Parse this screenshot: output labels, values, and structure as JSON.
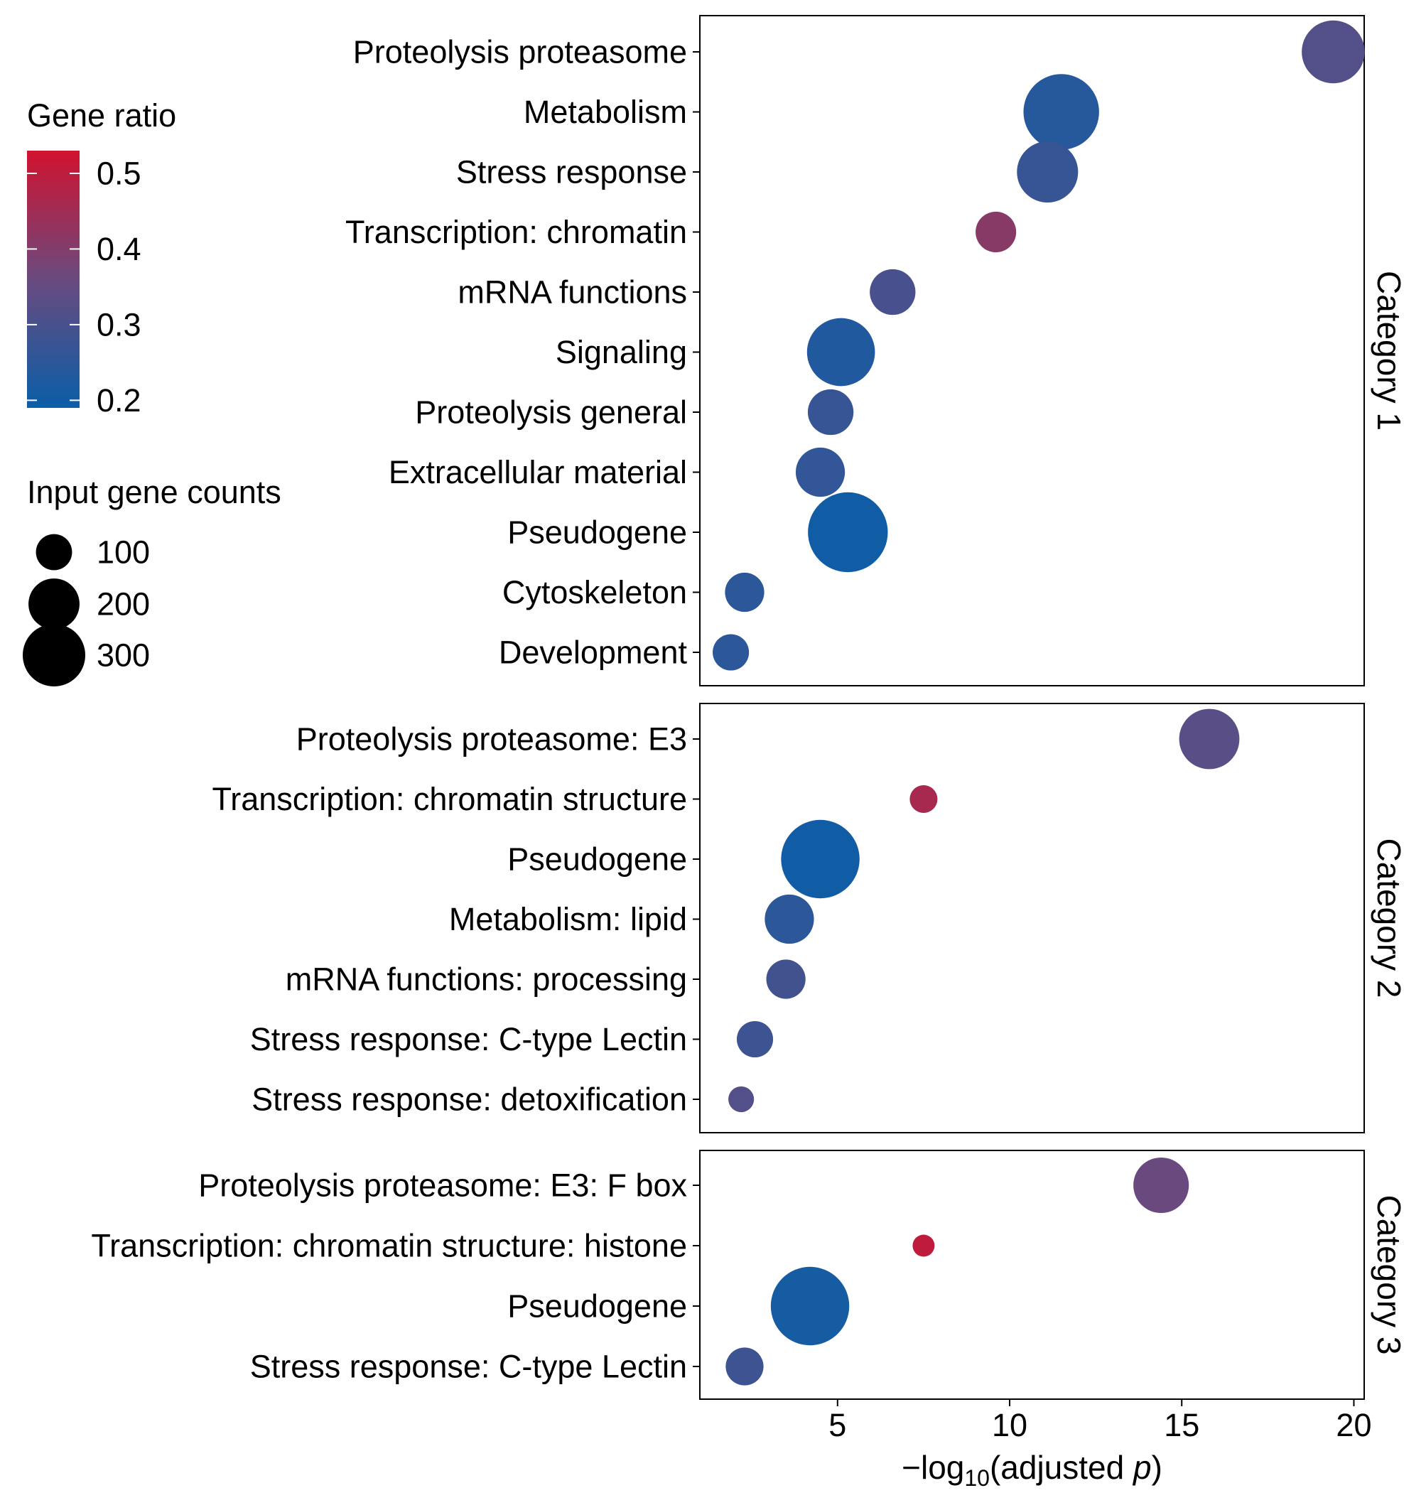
{
  "chart_data": {
    "type": "scatter",
    "x_label": {
      "prefix": "−log",
      "sub": "10",
      "open": "(adjusted ",
      "italic": "p",
      "close": ")"
    },
    "x_ticks": [
      5,
      10,
      15,
      20
    ],
    "xlim": [
      1.0,
      20.3
    ],
    "grid": false,
    "size_scale": {
      "title": "Input gene counts",
      "breaks": [
        100,
        200,
        300
      ]
    },
    "color_scale": {
      "title": "Gene ratio",
      "breaks": [
        0.5,
        0.4,
        0.3,
        0.2
      ],
      "min": 0.19,
      "max": 0.53,
      "low_color": "#0a5ea8",
      "mid_color": "#6a4a7e",
      "high_color": "#d1122f"
    },
    "facets": [
      {
        "label": "Category 1",
        "points": [
          {
            "term": "Proteolysis proteasome",
            "x": 19.4,
            "count": 180,
            "ratio": 0.32
          },
          {
            "term": "Metabolism",
            "x": 11.5,
            "count": 260,
            "ratio": 0.24
          },
          {
            "term": "Stress response",
            "x": 11.1,
            "count": 170,
            "ratio": 0.27
          },
          {
            "term": "Transcription: chromatin",
            "x": 9.6,
            "count": 75,
            "ratio": 0.41
          },
          {
            "term": "mRNA functions",
            "x": 6.6,
            "count": 95,
            "ratio": 0.3
          },
          {
            "term": "Signaling",
            "x": 5.1,
            "count": 210,
            "ratio": 0.23
          },
          {
            "term": "Proteolysis general",
            "x": 4.8,
            "count": 95,
            "ratio": 0.27
          },
          {
            "term": "Extracellular material",
            "x": 4.5,
            "count": 110,
            "ratio": 0.26
          },
          {
            "term": "Pseudogene",
            "x": 5.3,
            "count": 290,
            "ratio": 0.2
          },
          {
            "term": "Cytoskeleton",
            "x": 2.3,
            "count": 70,
            "ratio": 0.25
          },
          {
            "term": "Development",
            "x": 1.9,
            "count": 60,
            "ratio": 0.25
          }
        ]
      },
      {
        "label": "Category 2",
        "points": [
          {
            "term": "Proteolysis proteasome: E3",
            "x": 15.8,
            "count": 165,
            "ratio": 0.33
          },
          {
            "term": "Transcription: chromatin structure",
            "x": 7.5,
            "count": 35,
            "ratio": 0.46
          },
          {
            "term": "Pseudogene",
            "x": 4.5,
            "count": 280,
            "ratio": 0.2
          },
          {
            "term": "Metabolism: lipid",
            "x": 3.6,
            "count": 110,
            "ratio": 0.25
          },
          {
            "term": "mRNA functions: processing",
            "x": 3.5,
            "count": 70,
            "ratio": 0.29
          },
          {
            "term": "Stress response: C-type Lectin",
            "x": 2.6,
            "count": 60,
            "ratio": 0.28
          },
          {
            "term": "Stress response: detoxification",
            "x": 2.2,
            "count": 30,
            "ratio": 0.32
          }
        ]
      },
      {
        "label": "Category 3",
        "points": [
          {
            "term": "Proteolysis proteasome: E3: F box",
            "x": 14.4,
            "count": 140,
            "ratio": 0.36
          },
          {
            "term": "Transcription: chromatin structure: histone",
            "x": 7.5,
            "count": 22,
            "ratio": 0.5
          },
          {
            "term": "Pseudogene",
            "x": 4.2,
            "count": 280,
            "ratio": 0.21
          },
          {
            "term": "Stress response: C-type Lectin",
            "x": 2.3,
            "count": 65,
            "ratio": 0.28
          }
        ]
      }
    ]
  }
}
